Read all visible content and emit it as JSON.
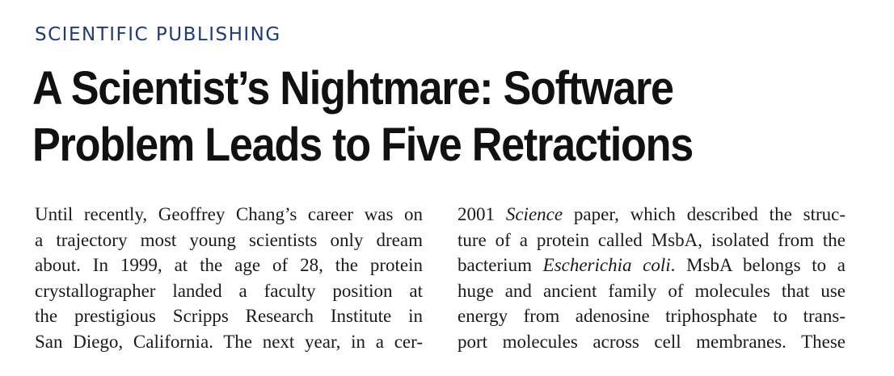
{
  "section": "SCIENTIFIC PUBLISHING",
  "headline": {
    "line1": "A Scientist’s Nightmare: Software",
    "line2": "Problem Leads to Five Retractions"
  },
  "column_left": [
    "Until recently, Geoffrey Chang’s career was on",
    "a trajectory most young scientists only dream",
    "about. In 1999, at the age of 28, the protein",
    "crystallographer landed a faculty position at",
    "the prestigious Scripps Research Institute in",
    "San Diego, California. The next year, in a cer-"
  ],
  "column_right": {
    "l1_a": "2001 ",
    "l1_i": "Science",
    "l1_b": " paper, which described the struc-",
    "l2": "ture of a protein called MsbA, isolated from the",
    "l3_a": "bacterium ",
    "l3_i": "Escherichia coli",
    "l3_b": ". MsbA belongs to a",
    "l4": "huge and ancient family of molecules that use",
    "l5": "energy from adenosine triphosphate to trans-",
    "l6": "port molecules across cell membranes. These"
  }
}
